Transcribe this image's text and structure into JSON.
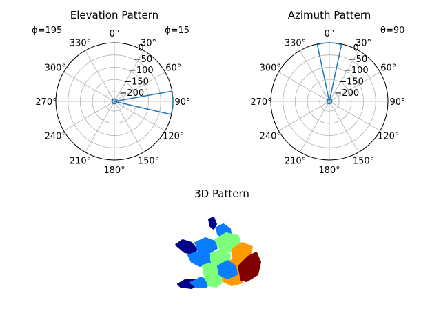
{
  "chart_data": [
    {
      "type": "polar",
      "title": "Elevation Pattern",
      "annotations": {
        "left": "ϕ=195",
        "right": "ϕ=15"
      },
      "theta_direction": "clockwise",
      "theta_zero": "top",
      "theta_ticks": [
        "0°",
        "30°",
        "60°",
        "90°",
        "120°",
        "150°",
        "180°",
        "210°",
        "240°",
        "270°",
        "300°",
        "330°"
      ],
      "r_ticks": [
        "−200",
        "−150",
        "−100",
        "−50",
        "0"
      ],
      "r_tick_values": [
        -200,
        -150,
        -100,
        -50,
        0
      ],
      "rlim": [
        -240,
        0
      ],
      "grid": true,
      "series": [
        {
          "theta_deg": [
            0,
            77,
            80,
            83,
            87,
            90,
            93,
            97,
            100,
            103,
            107,
            180
          ],
          "r": [
            -240,
            -240,
            -3,
            -1,
            0,
            0,
            0,
            0,
            -1,
            -3,
            -240,
            -240
          ]
        }
      ]
    },
    {
      "type": "polar",
      "title": "Azimuth Pattern",
      "annotations": {
        "right": "θ=90"
      },
      "theta_direction": "clockwise",
      "theta_zero": "top",
      "theta_ticks": [
        "0°",
        "30°",
        "60°",
        "90°",
        "120°",
        "150°",
        "180°",
        "210°",
        "240°",
        "270°",
        "300°",
        "330°"
      ],
      "r_ticks": [
        "−200",
        "−150",
        "−100",
        "−50",
        "0"
      ],
      "r_tick_values": [
        -200,
        -150,
        -100,
        -50,
        0
      ],
      "rlim": [
        -240,
        0
      ],
      "grid": true,
      "series": [
        {
          "theta_deg": [
            180,
            345,
            348,
            352,
            356,
            0,
            4,
            8,
            12,
            15,
            180
          ],
          "r": [
            -240,
            -240,
            -3,
            -1,
            0,
            0,
            0,
            -1,
            -3,
            -240,
            -240
          ]
        }
      ]
    },
    {
      "type": "3d-scatter",
      "title": "3D Pattern",
      "colormap": [
        "#00008b",
        "#0a7cff",
        "#7dff7a",
        "#ff9a00",
        "#800000"
      ]
    }
  ]
}
